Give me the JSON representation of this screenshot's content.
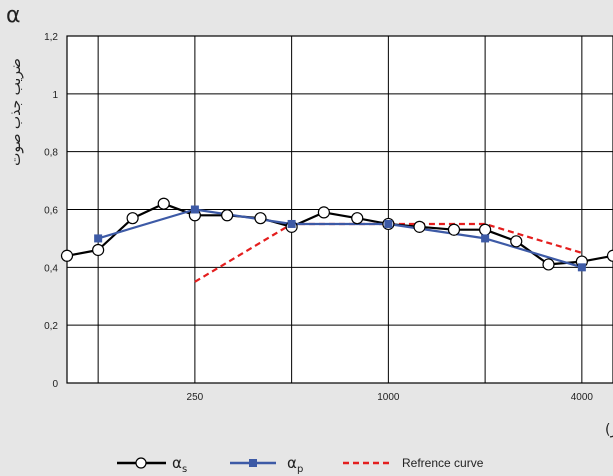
{
  "chart_data": {
    "type": "line",
    "title": "",
    "y_symbol": "α",
    "ylabel": "ضریب جذب صوت",
    "xlabel": "فرکانس (هرتز)",
    "x_scale": "log2",
    "xlim": [
      100,
      5000
    ],
    "ylim": [
      0,
      1.2
    ],
    "grid": true,
    "legend_position": "bottom-center",
    "x_tick_labels": [
      {
        "value": 250,
        "label": "250"
      },
      {
        "value": 1000,
        "label": "1000"
      },
      {
        "value": 4000,
        "label": "4000"
      }
    ],
    "y_tick_labels": [
      {
        "value": 0,
        "label": "0"
      },
      {
        "value": 0.2,
        "label": "0,2"
      },
      {
        "value": 0.4,
        "label": "0,4"
      },
      {
        "value": 0.6,
        "label": "0,6"
      },
      {
        "value": 0.8,
        "label": "0,8"
      },
      {
        "value": 1.0,
        "label": "1"
      },
      {
        "value": 1.2,
        "label": "1,2"
      }
    ],
    "series": [
      {
        "name": "α",
        "legend_sub": "s",
        "color": "#000000",
        "marker": "circle-open",
        "line": "solid",
        "points": [
          {
            "x": 100,
            "y": 0.44
          },
          {
            "x": 125,
            "y": 0.46
          },
          {
            "x": 160,
            "y": 0.57
          },
          {
            "x": 200,
            "y": 0.62
          },
          {
            "x": 250,
            "y": 0.58
          },
          {
            "x": 315,
            "y": 0.58
          },
          {
            "x": 400,
            "y": 0.57
          },
          {
            "x": 500,
            "y": 0.54
          },
          {
            "x": 630,
            "y": 0.59
          },
          {
            "x": 800,
            "y": 0.57
          },
          {
            "x": 1000,
            "y": 0.55
          },
          {
            "x": 1250,
            "y": 0.54
          },
          {
            "x": 1600,
            "y": 0.53
          },
          {
            "x": 2000,
            "y": 0.53
          },
          {
            "x": 2500,
            "y": 0.49
          },
          {
            "x": 3150,
            "y": 0.41
          },
          {
            "x": 4000,
            "y": 0.42
          },
          {
            "x": 5000,
            "y": 0.44
          }
        ]
      },
      {
        "name": "α",
        "legend_sub": "p",
        "color": "#3d5aa6",
        "marker": "square-filled",
        "line": "solid",
        "points": [
          {
            "x": 125,
            "y": 0.5
          },
          {
            "x": 250,
            "y": 0.6
          },
          {
            "x": 500,
            "y": 0.55
          },
          {
            "x": 1000,
            "y": 0.55
          },
          {
            "x": 2000,
            "y": 0.5
          },
          {
            "x": 4000,
            "y": 0.4
          }
        ]
      },
      {
        "name": "Refrence curve",
        "color": "#e41e1e",
        "marker": "none",
        "line": "dashed",
        "points": [
          {
            "x": 250,
            "y": 0.35
          },
          {
            "x": 500,
            "y": 0.55
          },
          {
            "x": 1000,
            "y": 0.55
          },
          {
            "x": 2000,
            "y": 0.55
          },
          {
            "x": 4000,
            "y": 0.45
          }
        ]
      }
    ]
  }
}
